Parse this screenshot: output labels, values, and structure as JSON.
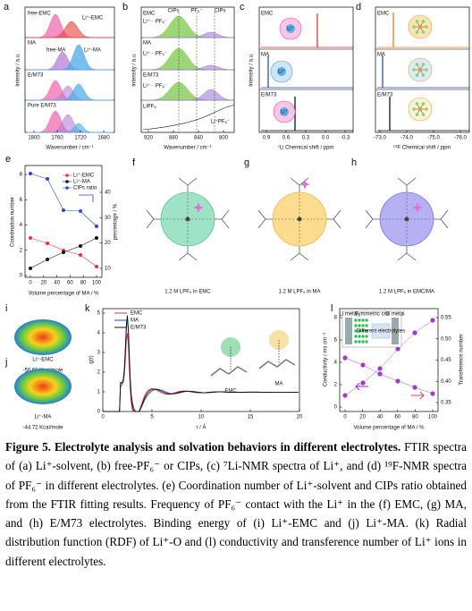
{
  "panels": {
    "a": {
      "label": "a",
      "annotations": [
        "free-EMC",
        "Li⁺-EMC",
        "MA",
        "free-MA",
        "Li⁺-MA",
        "E/M73",
        "Pure E/M73"
      ],
      "ylabel": "Intensity / a.u.",
      "xticks": [
        "1800",
        "1760",
        "1720",
        "1680"
      ],
      "xlabel": "Wavenumber / cm⁻¹"
    },
    "b": {
      "label": "b",
      "annotations": [
        "EMC",
        "Li⁺···PF₆⁻",
        "MA",
        "Li⁺···PF₆⁻",
        "E/M73",
        "Li⁺···PF₆⁻",
        "LiPF₆",
        "CIPs",
        "PF₆⁻",
        "CIPs",
        "Li⁺PF₆⁻"
      ],
      "ylabel": "Intensity / a.u.",
      "xticks": [
        "920",
        "880",
        "840",
        "800"
      ],
      "xlabel": "Wavenumber / cm⁻¹"
    },
    "c": {
      "label": "c",
      "annotations": [
        "EMC",
        "MA",
        "E/M73"
      ],
      "icon": "Li⁺",
      "ylabel": "Intensity / a.u.",
      "xticks": [
        "0.9",
        "0.6",
        "0.3",
        "0.0",
        "-0.3"
      ],
      "xlabel": "⁷Li Chemical shift / ppm"
    },
    "d": {
      "label": "d",
      "annotations": [
        "EMC",
        "MA",
        "E/M73"
      ],
      "xticks": [
        "-73.0",
        "-74.0",
        "-75.0",
        "-76.0"
      ],
      "xlabel": "¹⁹F Chemical shift / ppm"
    },
    "e": {
      "label": "e",
      "legend": [
        "Li⁺-EMC",
        "Li⁺-MA",
        "CIPs ratio"
      ],
      "ylabel": "Coordination number",
      "y2label": "percentage / %",
      "yticks": [
        "0",
        "2",
        "4",
        "6",
        "8"
      ],
      "y2ticks": [
        "10",
        "20",
        "30",
        "40"
      ],
      "xticks": [
        "0",
        "20",
        "40",
        "60",
        "80",
        "100"
      ],
      "xlabel": "Volume percentage of MA / %"
    },
    "f": {
      "label": "f",
      "caption": "1.2 M LPF₆ in  EMC"
    },
    "g": {
      "label": "g",
      "caption": "1.2 M LPF₆ in MA"
    },
    "h": {
      "label": "h",
      "caption": "1.2 M LPF₆ in EMC/MA"
    },
    "i": {
      "label": "i",
      "name": "Li⁺-EMC",
      "energy": "-50.66 Kcal/mole"
    },
    "j": {
      "label": "j",
      "name": "Li⁺-MA",
      "energy": "-44.72 Kcal/mole"
    },
    "k": {
      "label": "k",
      "legend": [
        "EMC",
        "MA",
        "E/M73"
      ],
      "ylabel": "g(r)",
      "yticks": [
        "0",
        "1",
        "2",
        "3",
        "4",
        "5"
      ],
      "xticks": [
        "0",
        "5",
        "10",
        "15",
        "20"
      ],
      "xlabel": "r / Å",
      "molecules": [
        "EMC",
        "MA"
      ]
    },
    "l": {
      "label": "l",
      "ylabel": "Conductivity / ms cm⁻¹",
      "y2label": "Transference number",
      "yticks": [
        "0",
        "2",
        "4",
        "6",
        "8"
      ],
      "y2ticks": [
        "0.35",
        "0.40",
        "0.45",
        "0.50",
        "0.55"
      ],
      "xticks": [
        "0",
        "20",
        "40",
        "60",
        "80",
        "100"
      ],
      "xlabel": "Volume percentage of MA / %",
      "inset": [
        "Li metal",
        "Symmetric cell",
        "Li metal",
        "Different electrolytes"
      ]
    }
  },
  "caption": {
    "title": "Figure 5. Electrolyte analysis and solvation behaviors in different electrolytes.",
    "body": " FTIR spectra of (a) Li⁺-solvent, (b) free-PF₆⁻ or CIPs, (c) ⁷Li-NMR spectra of Li⁺, and (d) ¹⁹F-NMR spectra of PF₆⁻ in different electrolytes. (e) Coordination number of Li⁺-solvent and CIPs ratio obtained from the FTIR fitting results. Frequency of PF₆⁻ contact with the Li⁺ in the (f) EMC, (g) MA, and (h) E/M73 electrolytes. Binding energy of (i) Li⁺-EMC and (j) Li⁺-MA. (k) Radial distribution function (RDF) of Li⁺-O and (l) conductivity and transference number of Li⁺ ions in different electrolytes."
  }
}
